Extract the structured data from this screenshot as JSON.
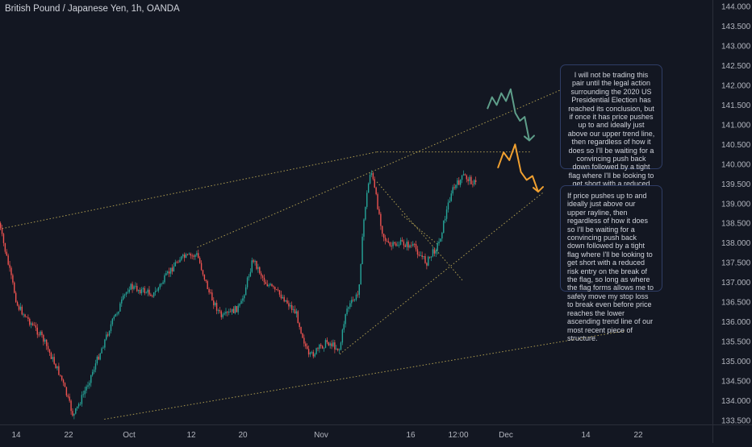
{
  "header": {
    "symbol_title": "British Pound / Japanese Yen, 1h, OANDA"
  },
  "notes": [
    "I will not be trading this pair until the legal action surrounding the 2020 US Presidential Election has reached its conclusion, but if once it has price pushes up to and ideally just above our upper trend line, then regardless of how it does so I'll be waiting for a convincing push back down followed by a tight flag where I'll be looking to get short with a reduced risk entry on the break of the flag.",
    "If price pushes up to and ideally just above our upper rayline, then regardless of how it does so I'll be waiting for a convincing push back down followed by a tight flag where I'll be looking to get short with a reduced risk entry on the break of the flag, so long as where the flag forms allows me to safely move my stop loss to break even before price reaches the lower ascending trend line of our most recent piece of structure."
  ],
  "colors": {
    "background": "#131722",
    "up_candle": "#26a69a",
    "down_candle": "#ef5350",
    "trendline": "#c9b458",
    "arrow_green": "#5e9e8a",
    "arrow_orange": "#f0a030",
    "axis_text": "#b2b5be"
  },
  "chart_data": {
    "type": "candlestick",
    "title": "British Pound / Japanese Yen, 1h, OANDA",
    "ylim": [
      133.4,
      144.1
    ],
    "y_ticks": [
      "133.500",
      "134.000",
      "134.500",
      "135.000",
      "135.500",
      "136.000",
      "136.500",
      "137.000",
      "137.500",
      "138.000",
      "138.500",
      "139.000",
      "139.500",
      "140.000",
      "140.500",
      "141.000",
      "141.500",
      "142.000",
      "142.500",
      "143.000",
      "143.500",
      "144.000"
    ],
    "x_ticks": [
      "14",
      "22",
      "Oct",
      "12",
      "20",
      "Nov",
      "16",
      "12:00",
      "Dec",
      "14",
      "22"
    ],
    "price_path": [
      {
        "date": "Sep 10",
        "price": 138.5
      },
      {
        "date": "Sep 13",
        "price": 136.4
      },
      {
        "date": "Sep 17",
        "price": 135.6
      },
      {
        "date": "Sep 20",
        "price": 134.6
      },
      {
        "date": "Sep 22",
        "price": 133.6
      },
      {
        "date": "Sep 24",
        "price": 134.3
      },
      {
        "date": "Sep 28",
        "price": 135.9
      },
      {
        "date": "Oct 1",
        "price": 136.9
      },
      {
        "date": "Oct 5",
        "price": 136.7
      },
      {
        "date": "Oct 9",
        "price": 137.6
      },
      {
        "date": "Oct 12",
        "price": 137.7
      },
      {
        "date": "Oct 14",
        "price": 136.7
      },
      {
        "date": "Oct 16",
        "price": 136.1
      },
      {
        "date": "Oct 19",
        "price": 136.4
      },
      {
        "date": "Oct 21",
        "price": 137.6
      },
      {
        "date": "Oct 23",
        "price": 137.0
      },
      {
        "date": "Oct 26",
        "price": 136.6
      },
      {
        "date": "Oct 28",
        "price": 136.2
      },
      {
        "date": "Oct 30",
        "price": 135.1
      },
      {
        "date": "Nov 2",
        "price": 135.5
      },
      {
        "date": "Nov 4",
        "price": 135.3
      },
      {
        "date": "Nov 5",
        "price": 136.3
      },
      {
        "date": "Nov 7",
        "price": 136.7
      },
      {
        "date": "Nov 8",
        "price": 138.8
      },
      {
        "date": "Nov 9",
        "price": 139.9
      },
      {
        "date": "Nov 11",
        "price": 138.2
      },
      {
        "date": "Nov 12",
        "price": 137.9
      },
      {
        "date": "Nov 14",
        "price": 138.0
      },
      {
        "date": "Nov 16",
        "price": 137.9
      },
      {
        "date": "Nov 18",
        "price": 137.5
      },
      {
        "date": "Nov 20",
        "price": 138.0
      },
      {
        "date": "Nov 22",
        "price": 139.3
      },
      {
        "date": "Nov 24",
        "price": 139.7
      },
      {
        "date": "Nov 26",
        "price": 139.5
      }
    ],
    "trend_lines": [
      {
        "from": {
          "date": "Sep 10",
          "price": 138.35
        },
        "to": {
          "date": "Nov 10",
          "price": 140.31
        }
      },
      {
        "from": {
          "date": "Oct 12",
          "price": 137.89
        },
        "to": {
          "date": "Dec 18",
          "price": 142.45
        }
      },
      {
        "from": {
          "date": "Nov 10",
          "price": 140.31
        },
        "to": {
          "date": "Dec 5",
          "price": 140.31
        }
      },
      {
        "from": {
          "date": "Nov 10",
          "price": 139.55
        },
        "to": {
          "date": "Nov 24",
          "price": 137.02
        }
      },
      {
        "from": {
          "date": "Nov 4",
          "price": 135.18
        },
        "to": {
          "date": "Dec 7",
          "price": 139.3
        }
      },
      {
        "from": {
          "date": "Nov 14",
          "price": 138.72
        },
        "to": {
          "date": "Nov 20",
          "price": 137.94
        }
      },
      {
        "from": {
          "date": "Sep 27",
          "price": 133.53
        },
        "to": {
          "date": "Dec 20",
          "price": 135.77
        }
      }
    ],
    "projections": [
      {
        "color": "green",
        "path": [
          141.4,
          141.7,
          141.5,
          141.8,
          141.6,
          141.9,
          141.3,
          141.1,
          141.2,
          140.6
        ]
      },
      {
        "color": "orange",
        "path": [
          139.9,
          140.3,
          140.1,
          140.5,
          139.8,
          139.6,
          139.7,
          139.3
        ]
      }
    ]
  }
}
